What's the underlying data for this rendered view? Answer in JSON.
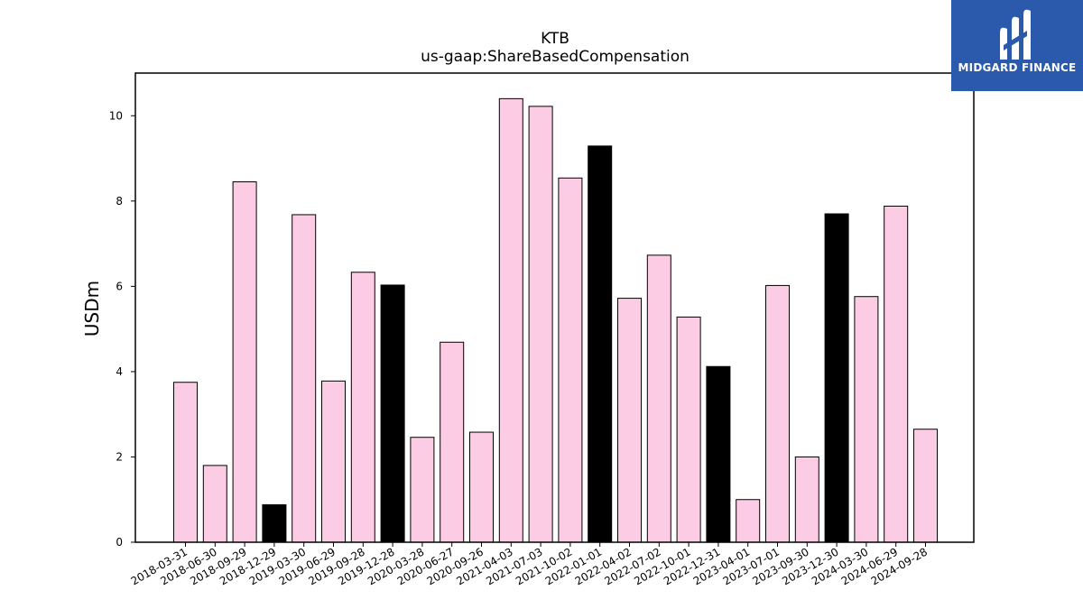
{
  "logo": {
    "text": "MIDGARD FINANCE",
    "background": "#2b59ab"
  },
  "chart_data": {
    "type": "bar",
    "title": "KTB",
    "subtitle": "us-gaap:ShareBasedCompensation",
    "xlabel": "",
    "ylabel": "USDm",
    "ylim": [
      0,
      11
    ],
    "yticks": [
      0,
      2,
      4,
      6,
      8,
      10
    ],
    "grid": false,
    "colors": {
      "default": "#fccce4",
      "highlight": "#000000",
      "edge": "#000000"
    },
    "categories": [
      "2018-03-31",
      "2018-06-30",
      "2018-09-29",
      "2018-12-29",
      "2019-03-30",
      "2019-06-29",
      "2019-09-28",
      "2019-12-28",
      "2020-03-28",
      "2020-06-27",
      "2020-09-26",
      "2021-04-03",
      "2021-07-03",
      "2021-10-02",
      "2022-01-01",
      "2022-04-02",
      "2022-07-02",
      "2022-10-01",
      "2022-12-31",
      "2023-04-01",
      "2023-07-01",
      "2023-09-30",
      "2023-12-30",
      "2024-03-30",
      "2024-06-29",
      "2024-09-28"
    ],
    "values": [
      3.75,
      1.8,
      8.45,
      0.88,
      7.68,
      3.78,
      6.33,
      6.03,
      2.46,
      4.69,
      2.58,
      10.4,
      10.22,
      8.54,
      9.29,
      5.72,
      6.73,
      5.28,
      4.12,
      1.0,
      6.02,
      2.0,
      7.7,
      5.76,
      7.88,
      2.65
    ],
    "highlight": [
      false,
      false,
      false,
      true,
      false,
      false,
      false,
      true,
      false,
      false,
      false,
      false,
      false,
      false,
      true,
      false,
      false,
      false,
      true,
      false,
      false,
      false,
      true,
      false,
      false,
      false
    ]
  }
}
